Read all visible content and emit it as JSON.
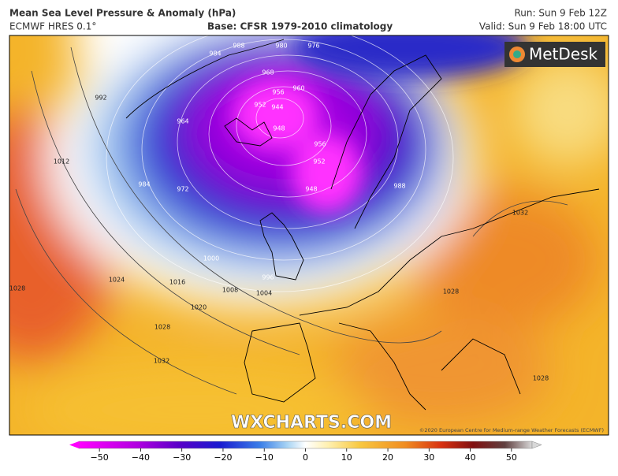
{
  "header": {
    "title": "Mean Sea Level Pressure & Anomaly (hPa)",
    "model": "ECMWF HRES 0.1°",
    "base": "Base: CFSR 1979-2010 climatology",
    "run": "Run: Sun 9 Feb 12Z",
    "valid": "Valid: Sun 9 Feb 18:00 UTC"
  },
  "map": {
    "logo": "MetDesk",
    "watermark": "WXCHARTS.COM",
    "copyright": "©2020 European Centre for Medium-range Weather Forecasts (ECMWF)",
    "isobar_labels": [
      984,
      988,
      980,
      976,
      968,
      960,
      956,
      952,
      944,
      948,
      964,
      956,
      952,
      948,
      972,
      984,
      988,
      992,
      1012,
      1000,
      996,
      1008,
      1004,
      1016,
      1020,
      1024,
      1028,
      1032,
      1028,
      1028,
      1032,
      1028
    ]
  },
  "colorbar": {
    "range": [
      -55,
      55
    ],
    "ticks": [
      {
        "value": -50,
        "label": "−50"
      },
      {
        "value": -40,
        "label": "−40"
      },
      {
        "value": -30,
        "label": "−30"
      },
      {
        "value": -20,
        "label": "−20"
      },
      {
        "value": -10,
        "label": "−10"
      },
      0,
      10,
      20,
      30,
      40,
      50
    ]
  }
}
